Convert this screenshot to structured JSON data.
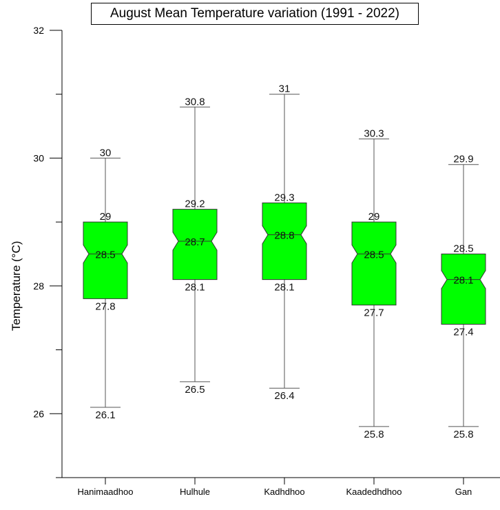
{
  "chart_data": {
    "type": "box",
    "title": "August Mean Temperature variation (1991 - 2022)",
    "xlabel": "",
    "ylabel": "Temperature (°C)",
    "ylim": [
      25,
      32
    ],
    "yticks": [
      {
        "value": 26,
        "label": "26"
      },
      {
        "value": 28,
        "label": "28"
      },
      {
        "value": 30,
        "label": "30"
      },
      {
        "value": 32,
        "label": "32"
      }
    ],
    "y_minor_ticks": [
      25,
      27,
      29,
      31
    ],
    "notched": true,
    "box_color": "#00ff00",
    "categories": [
      "Hanimaadhoo",
      "Hulhule",
      "Kadhdhoo",
      "Kaadedhdhoo",
      "Gan"
    ],
    "boxes": [
      {
        "category": "Hanimaadhoo",
        "min": 26.1,
        "q1": 27.8,
        "median": 28.5,
        "q3": 29.0,
        "max": 30.0,
        "labels": {
          "min": "26.1",
          "q1": "27.8",
          "median": "28.5",
          "q3": "29",
          "max": "30"
        }
      },
      {
        "category": "Hulhule",
        "min": 26.5,
        "q1": 28.1,
        "median": 28.7,
        "q3": 29.2,
        "max": 30.8,
        "labels": {
          "min": "26.5",
          "q1": "28.1",
          "median": "28.7",
          "q3": "29.2",
          "max": "30.8"
        }
      },
      {
        "category": "Kadhdhoo",
        "min": 26.4,
        "q1": 28.1,
        "median": 28.8,
        "q3": 29.3,
        "max": 31.0,
        "labels": {
          "min": "26.4",
          "q1": "28.1",
          "median": "28.8",
          "q3": "29.3",
          "max": "31"
        }
      },
      {
        "category": "Kaadedhdhoo",
        "min": 25.8,
        "q1": 27.7,
        "median": 28.5,
        "q3": 29.0,
        "max": 30.3,
        "labels": {
          "min": "25.8",
          "q1": "27.7",
          "median": "28.5",
          "q3": "29",
          "max": "30.3"
        }
      },
      {
        "category": "Gan",
        "min": 25.8,
        "q1": 27.4,
        "median": 28.1,
        "q3": 28.5,
        "max": 29.9,
        "labels": {
          "min": "25.8",
          "q1": "27.4",
          "median": "28.1",
          "q3": "28.5",
          "max": "29.9"
        }
      }
    ]
  }
}
